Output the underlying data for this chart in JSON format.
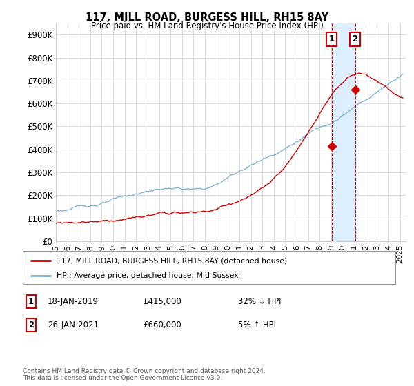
{
  "title": "117, MILL ROAD, BURGESS HILL, RH15 8AY",
  "subtitle": "Price paid vs. HM Land Registry's House Price Index (HPI)",
  "ylabel_ticks": [
    "£0",
    "£100K",
    "£200K",
    "£300K",
    "£400K",
    "£500K",
    "£600K",
    "£700K",
    "£800K",
    "£900K"
  ],
  "ytick_vals": [
    0,
    100000,
    200000,
    300000,
    400000,
    500000,
    600000,
    700000,
    800000,
    900000
  ],
  "ylim": [
    0,
    950000
  ],
  "xlim": [
    1995,
    2025.5
  ],
  "legend_line1": "117, MILL ROAD, BURGESS HILL, RH15 8AY (detached house)",
  "legend_line2": "HPI: Average price, detached house, Mid Sussex",
  "marker1_year": 2019.05,
  "marker1_price": 415000,
  "marker2_year": 2021.08,
  "marker2_price": 660000,
  "ann1_date": "18-JAN-2019",
  "ann1_price": "£415,000",
  "ann1_hpi": "32% ↓ HPI",
  "ann2_date": "26-JAN-2021",
  "ann2_price": "£660,000",
  "ann2_hpi": "5% ↑ HPI",
  "footer": "Contains HM Land Registry data © Crown copyright and database right 2024.\nThis data is licensed under the Open Government Licence v3.0.",
  "line_color_red": "#cc0000",
  "line_color_blue": "#7ab0d4",
  "highlight_color": "#ddeeff",
  "marker_box_color": "#cc0000",
  "grid_color": "#cccccc",
  "bg_color": "#ffffff"
}
